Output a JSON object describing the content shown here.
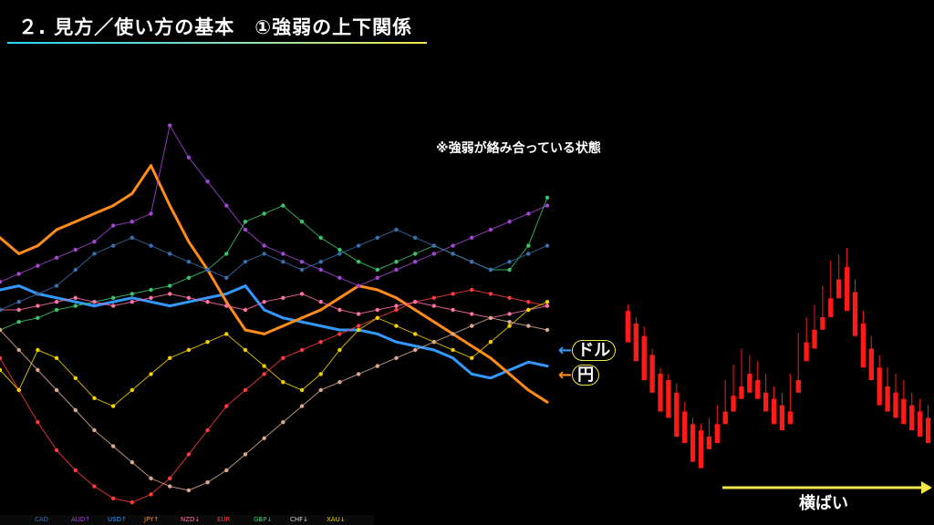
{
  "header": {
    "title": "２. 見方／使い方の基本　①強弱の上下関係"
  },
  "annotations": {
    "note": "※強弱が絡み合っている状態",
    "usd_label": "ドル",
    "jpy_label": "円",
    "arrow_glyph": "←",
    "sideways_label": "横ばい"
  },
  "colors": {
    "usd": "#3399ff",
    "jpy": "#ff8c1a",
    "eur": "#ff3b3b",
    "gbp": "#3cc46a",
    "aud": "#a346d6",
    "cad": "#3a6fb0",
    "nzd": "#ff6fa8",
    "chf": "#d8d8d8",
    "xau": "#f2d200",
    "pink": "#d8a890",
    "bull": "#2ad4ff",
    "bear": "#ff1a1a",
    "arrow_yellow": "#f2e64a"
  },
  "legend": {
    "items": [
      "CAD",
      "AUD↑",
      "USD↑",
      "JPY↑",
      "NZD↓",
      "EUR",
      "GBP↓",
      "CHF↓",
      "XAU↓"
    ]
  },
  "chart_data": [
    {
      "type": "line",
      "title": "",
      "xlabel": "",
      "ylabel": "",
      "ylim": [
        0,
        100
      ],
      "x": [
        0,
        1,
        2,
        3,
        4,
        5,
        6,
        7,
        8,
        9,
        10,
        11,
        12,
        13,
        14,
        15,
        16,
        17,
        18,
        19,
        20,
        21,
        22,
        23,
        24,
        25,
        26,
        27,
        28,
        29
      ],
      "series": [
        {
          "name": "USD↑",
          "color": "#3399ff",
          "width": 3,
          "values": [
            55,
            56,
            54,
            53,
            52,
            51,
            52,
            53,
            52,
            51,
            52,
            53,
            54,
            56,
            50,
            48,
            47,
            46,
            45,
            45,
            44,
            42,
            41,
            40,
            38,
            34,
            33,
            35,
            37,
            36
          ]
        },
        {
          "name": "JPY↑",
          "color": "#ff8c1a",
          "width": 3,
          "values": [
            68,
            64,
            66,
            70,
            72,
            74,
            76,
            79,
            86,
            76,
            67,
            60,
            52,
            45,
            44,
            46,
            48,
            50,
            53,
            56,
            55,
            53,
            50,
            47,
            44,
            41,
            38,
            34,
            30,
            27
          ]
        },
        {
          "name": "AUD↑",
          "color": "#a346d6",
          "width": 1,
          "values": [
            57,
            59,
            61,
            63,
            65,
            67,
            71,
            72,
            74,
            96,
            88,
            82,
            76,
            70,
            66,
            64,
            62,
            60,
            58,
            56,
            58,
            60,
            62,
            64,
            66,
            68,
            70,
            72,
            74,
            76
          ]
        },
        {
          "name": "EUR",
          "color": "#ff3b3b",
          "width": 1,
          "values": [
            38,
            30,
            22,
            15,
            10,
            6,
            3,
            2,
            4,
            8,
            14,
            20,
            26,
            30,
            34,
            38,
            40,
            42,
            44,
            46,
            48,
            50,
            52,
            53,
            54,
            55,
            54,
            53,
            52,
            51
          ]
        },
        {
          "name": "GBP↓",
          "color": "#3cc46a",
          "width": 1,
          "values": [
            45,
            47,
            48,
            50,
            51,
            52,
            53,
            54,
            55,
            56,
            58,
            60,
            64,
            72,
            74,
            76,
            72,
            68,
            65,
            62,
            60,
            62,
            64,
            66,
            64,
            62,
            60,
            60,
            66,
            78
          ]
        },
        {
          "name": "NZD↓",
          "color": "#ff6fa8",
          "width": 1,
          "values": [
            50,
            50,
            51,
            52,
            53,
            52,
            51,
            52,
            53,
            54,
            53,
            52,
            51,
            50,
            52,
            53,
            54,
            52,
            50,
            49,
            50,
            51,
            52,
            51,
            50,
            49,
            48,
            49,
            50,
            51
          ]
        },
        {
          "name": "XAU↓",
          "color": "#f2d200",
          "width": 1,
          "values": [
            35,
            30,
            40,
            38,
            33,
            28,
            26,
            30,
            34,
            38,
            40,
            42,
            44,
            40,
            36,
            32,
            30,
            34,
            40,
            45,
            48,
            46,
            44,
            42,
            40,
            38,
            42,
            46,
            50,
            52
          ]
        },
        {
          "name": "CHF↓",
          "color": "#d8a890",
          "width": 1,
          "values": [
            45,
            40,
            35,
            30,
            25,
            20,
            16,
            12,
            8,
            6,
            5,
            7,
            10,
            14,
            18,
            22,
            26,
            30,
            32,
            34,
            36,
            38,
            40,
            42,
            44,
            46,
            48,
            47,
            46,
            45
          ]
        },
        {
          "name": "CAD",
          "color": "#3a6fb0",
          "width": 1,
          "values": [
            50,
            52,
            54,
            56,
            60,
            64,
            66,
            68,
            66,
            64,
            62,
            60,
            58,
            62,
            64,
            62,
            60,
            62,
            64,
            66,
            68,
            70,
            68,
            66,
            64,
            62,
            60,
            62,
            64,
            66
          ]
        }
      ]
    },
    {
      "type": "candlestick",
      "title": "",
      "ylim": [
        0,
        100
      ],
      "candles": [
        [
          62,
          64,
          55,
          52
        ],
        [
          58,
          60,
          50,
          46
        ],
        [
          54,
          57,
          52,
          40
        ],
        [
          48,
          50,
          40,
          36
        ],
        [
          42,
          44,
          38,
          30
        ],
        [
          40,
          42,
          32,
          28
        ],
        [
          36,
          39,
          30,
          22
        ],
        [
          30,
          33,
          24,
          20
        ],
        [
          26,
          28,
          22,
          14
        ],
        [
          24,
          26,
          18,
          12
        ],
        [
          22,
          28,
          20,
          18
        ],
        [
          26,
          32,
          25,
          20
        ],
        [
          30,
          40,
          28,
          26
        ],
        [
          35,
          45,
          34,
          30
        ],
        [
          38,
          50,
          36,
          34
        ],
        [
          42,
          48,
          40,
          36
        ],
        [
          40,
          46,
          38,
          34
        ],
        [
          36,
          42,
          32,
          30
        ],
        [
          34,
          38,
          30,
          26
        ],
        [
          32,
          36,
          28,
          24
        ],
        [
          30,
          42,
          29,
          26
        ],
        [
          40,
          55,
          39,
          36
        ],
        [
          52,
          60,
          50,
          46
        ],
        [
          56,
          64,
          54,
          50
        ],
        [
          60,
          70,
          58,
          56
        ],
        [
          66,
          78,
          64,
          60
        ],
        [
          72,
          80,
          70,
          66
        ],
        [
          76,
          82,
          66,
          62
        ],
        [
          68,
          72,
          58,
          54
        ],
        [
          58,
          62,
          48,
          44
        ],
        [
          50,
          54,
          44,
          40
        ],
        [
          44,
          48,
          36,
          32
        ],
        [
          38,
          44,
          34,
          30
        ],
        [
          36,
          42,
          32,
          28
        ],
        [
          34,
          40,
          30,
          26
        ],
        [
          32,
          36,
          28,
          24
        ],
        [
          30,
          34,
          26,
          22
        ],
        [
          28,
          32,
          24,
          20
        ]
      ]
    }
  ]
}
